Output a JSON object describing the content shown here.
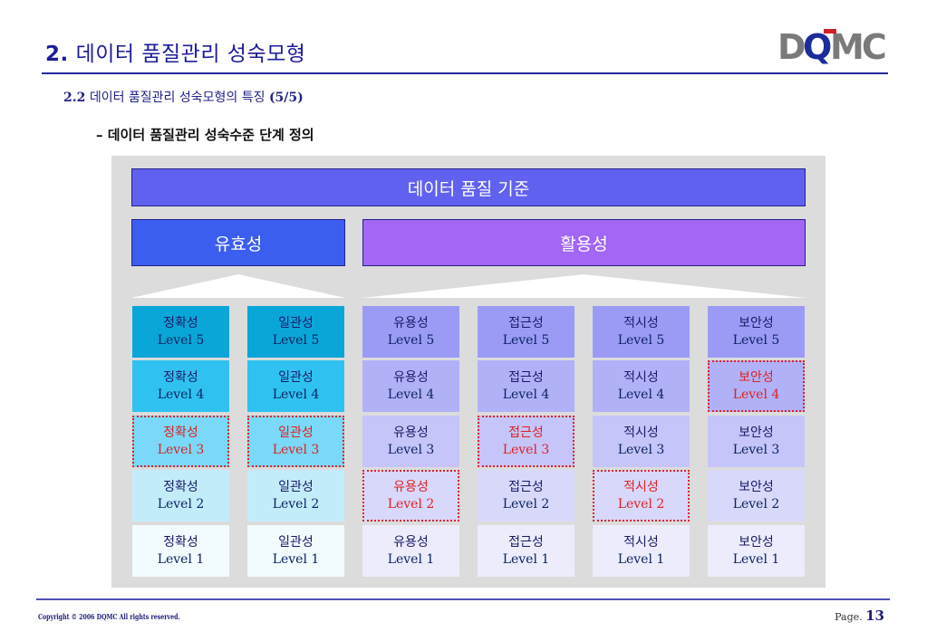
{
  "header": {
    "title_num": "2.",
    "title_text": "데이터 품질관리 성숙모형",
    "logo_text": "DQMC"
  },
  "subtitle": {
    "num": "2.2",
    "text": "데이터 품질관리 성숙모형의 특징",
    "page_ref": "(5/5)"
  },
  "section_label": "– 데이터 품질관리 성숙수준 단계 정의",
  "diagram": {
    "main_banner": "데이터 품질 기준",
    "group_left": "유효성",
    "group_right": "활용성",
    "columns": [
      {
        "name": "정확성",
        "levels": [
          "Level 5",
          "Level 4",
          "Level 3",
          "Level 2",
          "Level 1"
        ],
        "highlight_level": "Level 3",
        "fills": [
          "#0aa6d8",
          "#2fc2f0",
          "#7ad9f8",
          "#c3ecfb",
          "#f2fbfe"
        ]
      },
      {
        "name": "일관성",
        "levels": [
          "Level 5",
          "Level 4",
          "Level 3",
          "Level 2",
          "Level 1"
        ],
        "highlight_level": "Level 3",
        "fills": [
          "#0aa6d8",
          "#2fc2f0",
          "#7ad9f8",
          "#c3ecfb",
          "#f2fbfe"
        ]
      },
      {
        "name": "유용성",
        "levels": [
          "Level 5",
          "Level 4",
          "Level 3",
          "Level 2",
          "Level 1"
        ],
        "highlight_level": "Level 2",
        "fills": [
          "#9b9bf6",
          "#b1b1f8",
          "#c5c5fa",
          "#d8d8fb",
          "#ececfd"
        ]
      },
      {
        "name": "접근성",
        "levels": [
          "Level 5",
          "Level 4",
          "Level 3",
          "Level 2",
          "Level 1"
        ],
        "highlight_level": "Level 3",
        "fills": [
          "#9b9bf6",
          "#b1b1f8",
          "#c5c5fa",
          "#d8d8fb",
          "#ececfd"
        ]
      },
      {
        "name": "적시성",
        "levels": [
          "Level 5",
          "Level 4",
          "Level 3",
          "Level 2",
          "Level 1"
        ],
        "highlight_level": "Level 2",
        "fills": [
          "#9b9bf6",
          "#b1b1f8",
          "#c5c5fa",
          "#d8d8fb",
          "#ececfd"
        ]
      },
      {
        "name": "보안성",
        "levels": [
          "Level 5",
          "Level 4",
          "Level 3",
          "Level 2",
          "Level 1"
        ],
        "highlight_level": "Level 4",
        "fills": [
          "#9b9bf6",
          "#b1b1f8",
          "#c5c5fa",
          "#d8d8fb",
          "#ececfd"
        ]
      }
    ]
  },
  "footer": {
    "copyright": "Copyright © 2006 DQMC All rights reserved.",
    "page_label": "Page.",
    "page_number": "13"
  },
  "colors": {
    "title": "#1c1c9c",
    "rule": "#27279b",
    "highlight": "#e02020",
    "panel": "#dcdcdc"
  }
}
